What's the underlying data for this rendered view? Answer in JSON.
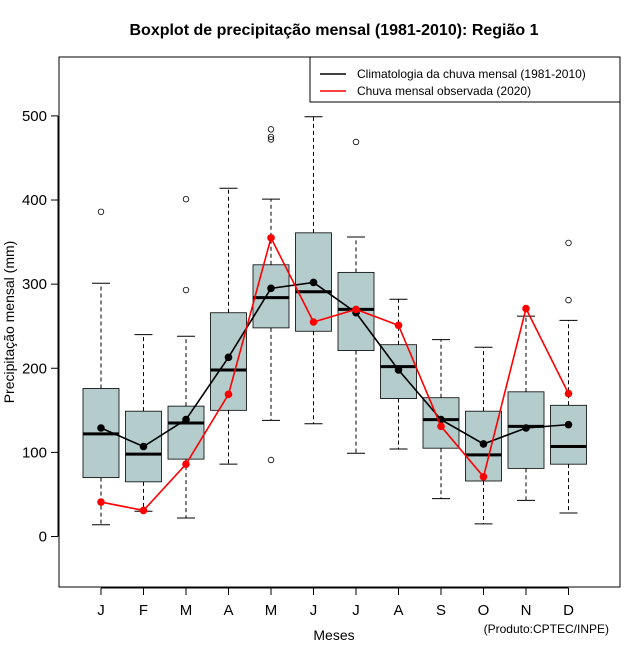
{
  "chart_data": {
    "type": "boxplot",
    "title": "Boxplot de precipitação mensal (1981-2010): Região 1",
    "xlabel": "Meses",
    "ylabel": "Precipitação mensal (mm)",
    "ylim": [
      -60,
      570
    ],
    "yticks": [
      0,
      100,
      200,
      300,
      400,
      500
    ],
    "categories": [
      "J",
      "F",
      "M",
      "A",
      "M",
      "J",
      "J",
      "A",
      "S",
      "O",
      "N",
      "D"
    ],
    "boxes": [
      {
        "min": 14,
        "q1": 70,
        "median": 122,
        "q3": 176,
        "max": 301,
        "outliers": [
          386
        ]
      },
      {
        "min": 30,
        "q1": 65,
        "median": 98,
        "q3": 149,
        "max": 240,
        "outliers": []
      },
      {
        "min": 22,
        "q1": 92,
        "median": 135,
        "q3": 155,
        "max": 238,
        "outliers": [
          293,
          401
        ]
      },
      {
        "min": 86,
        "q1": 150,
        "median": 198,
        "q3": 266,
        "max": 414,
        "outliers": []
      },
      {
        "min": 138,
        "q1": 248,
        "median": 284,
        "q3": 323,
        "max": 401,
        "outliers": [
          91,
          472,
          475,
          484
        ]
      },
      {
        "min": 134,
        "q1": 244,
        "median": 291,
        "q3": 361,
        "max": 499,
        "outliers": []
      },
      {
        "min": 99,
        "q1": 221,
        "median": 270,
        "q3": 314,
        "max": 356,
        "outliers": [
          469
        ]
      },
      {
        "min": 104,
        "q1": 164,
        "median": 202,
        "q3": 228,
        "max": 282,
        "outliers": []
      },
      {
        "min": 45,
        "q1": 105,
        "median": 139,
        "q3": 165,
        "max": 234,
        "outliers": []
      },
      {
        "min": 15,
        "q1": 66,
        "median": 97,
        "q3": 149,
        "max": 225,
        "outliers": []
      },
      {
        "min": 43,
        "q1": 81,
        "median": 131,
        "q3": 172,
        "max": 262,
        "outliers": []
      },
      {
        "min": 28,
        "q1": 86,
        "median": 107,
        "q3": 156,
        "max": 257,
        "outliers": [
          281,
          349
        ]
      }
    ],
    "series": [
      {
        "name": "Climatologia da chuva mensal (1981-2010)",
        "color": "#000000",
        "values": [
          129,
          107,
          139,
          213,
          295,
          302,
          266,
          198,
          139,
          110,
          129,
          133
        ]
      },
      {
        "name": "Chuva mensal observada (2020)",
        "color": "#ff0000",
        "values": [
          41,
          31,
          86,
          169,
          355,
          255,
          270,
          251,
          131,
          71,
          271,
          170
        ]
      }
    ],
    "box_fill": "#b4cccc",
    "legend_position": "top-right",
    "credit": "(Produto:CPTEC/INPE)"
  }
}
